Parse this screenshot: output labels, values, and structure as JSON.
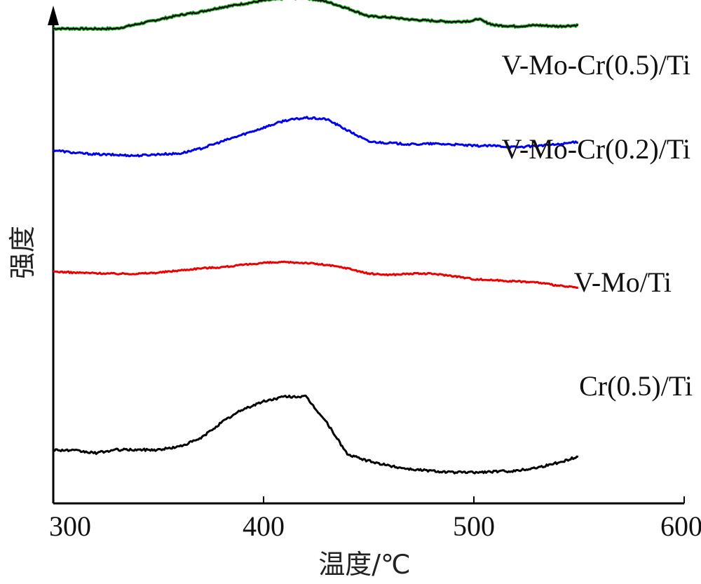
{
  "chart_data": {
    "type": "line",
    "xlabel": "温度/℃",
    "ylabel": "强度",
    "xlim": [
      300,
      600
    ],
    "x_ticks": [
      "300",
      "400",
      "500",
      "600"
    ],
    "y_ticks_shown": false,
    "legend": "inline-labels-right",
    "series": [
      {
        "name": "V-Mo-Cr(0.5)/Ti",
        "color": "#000000",
        "outline_color": "#22aa22",
        "points": [
          [
            300,
            37
          ],
          [
            310,
            37
          ],
          [
            320,
            36.8
          ],
          [
            330,
            37
          ],
          [
            340,
            41
          ],
          [
            350,
            45
          ],
          [
            360,
            49
          ],
          [
            370,
            52
          ],
          [
            380,
            56
          ],
          [
            390,
            59
          ],
          [
            400,
            62
          ],
          [
            410,
            64
          ],
          [
            420,
            64.5
          ],
          [
            430,
            61
          ],
          [
            440,
            55
          ],
          [
            450,
            48
          ],
          [
            460,
            47
          ],
          [
            470,
            45
          ],
          [
            480,
            44
          ],
          [
            490,
            43
          ],
          [
            500,
            44
          ],
          [
            502,
            46
          ],
          [
            505,
            43
          ],
          [
            510,
            40
          ],
          [
            520,
            39
          ],
          [
            530,
            40
          ],
          [
            540,
            39
          ],
          [
            550,
            40
          ]
        ]
      },
      {
        "name": "V-Mo-Cr(0.2)/Ti",
        "color": "#0000ee",
        "points": [
          [
            300,
            23
          ],
          [
            310,
            21
          ],
          [
            320,
            20
          ],
          [
            330,
            19.5
          ],
          [
            340,
            19
          ],
          [
            350,
            20
          ],
          [
            360,
            20.5
          ],
          [
            370,
            24
          ],
          [
            380,
            29
          ],
          [
            390,
            34
          ],
          [
            400,
            39
          ],
          [
            410,
            44
          ],
          [
            420,
            46
          ],
          [
            430,
            45
          ],
          [
            440,
            37
          ],
          [
            450,
            29
          ],
          [
            460,
            28
          ],
          [
            470,
            27
          ],
          [
            480,
            27.5
          ],
          [
            490,
            27
          ],
          [
            500,
            26
          ],
          [
            510,
            26
          ],
          [
            520,
            25
          ],
          [
            530,
            26
          ],
          [
            540,
            27
          ],
          [
            550,
            29
          ]
        ]
      },
      {
        "name": "V-Mo/Ti",
        "color": "#ee0000",
        "points": [
          [
            300,
            -6
          ],
          [
            310,
            -7
          ],
          [
            320,
            -7.5
          ],
          [
            330,
            -8
          ],
          [
            340,
            -8
          ],
          [
            350,
            -7
          ],
          [
            360,
            -5
          ],
          [
            370,
            -3
          ],
          [
            380,
            -2
          ],
          [
            390,
            0
          ],
          [
            400,
            2
          ],
          [
            410,
            2.5
          ],
          [
            420,
            2
          ],
          [
            430,
            0
          ],
          [
            440,
            -3
          ],
          [
            450,
            -8
          ],
          [
            460,
            -9
          ],
          [
            470,
            -8
          ],
          [
            480,
            -8
          ],
          [
            490,
            -10
          ],
          [
            500,
            -13
          ],
          [
            510,
            -14
          ],
          [
            520,
            -15
          ],
          [
            530,
            -16
          ],
          [
            540,
            -19
          ],
          [
            550,
            -21
          ]
        ]
      },
      {
        "name": "Cr(0.5)/Ti",
        "color": "#000000",
        "points": [
          [
            300,
            -42
          ],
          [
            310,
            -42.5
          ],
          [
            320,
            -44
          ],
          [
            330,
            -42
          ],
          [
            340,
            -42
          ],
          [
            350,
            -42
          ],
          [
            360,
            -40
          ],
          [
            370,
            -35
          ],
          [
            380,
            -25
          ],
          [
            390,
            -17
          ],
          [
            400,
            -12
          ],
          [
            410,
            -9
          ],
          [
            420,
            -9
          ],
          [
            430,
            -25
          ],
          [
            440,
            -45
          ],
          [
            450,
            -49
          ],
          [
            460,
            -52
          ],
          [
            470,
            -54
          ],
          [
            480,
            -55
          ],
          [
            490,
            -56
          ],
          [
            500,
            -56
          ],
          [
            510,
            -55.5
          ],
          [
            520,
            -55
          ],
          [
            530,
            -53
          ],
          [
            540,
            -50
          ],
          [
            550,
            -46
          ]
        ]
      }
    ]
  }
}
